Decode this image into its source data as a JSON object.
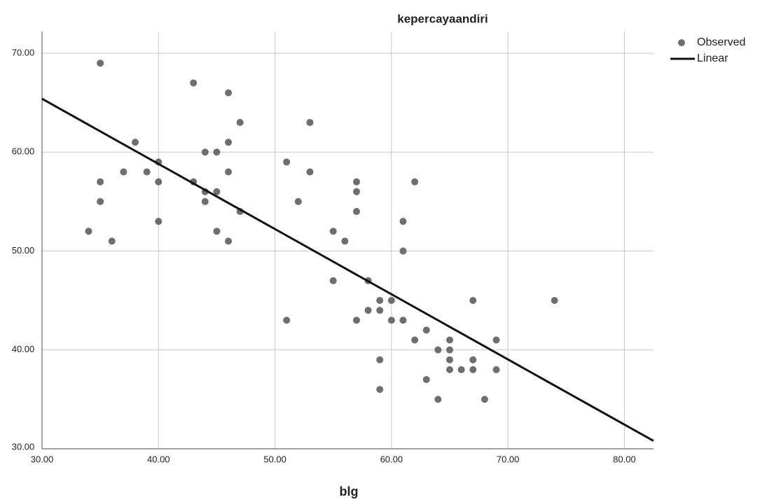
{
  "chart_data": {
    "type": "scatter",
    "title": "kepercayaandiri",
    "x_label": "blg",
    "xlim": [
      30,
      82.5
    ],
    "ylim": [
      30,
      72.2
    ],
    "xticks": [
      {
        "value": 30,
        "label": "30.00"
      },
      {
        "value": 40,
        "label": "40.00"
      },
      {
        "value": 50,
        "label": "50.00"
      },
      {
        "value": 60,
        "label": "60.00"
      },
      {
        "value": 70,
        "label": "70.00"
      },
      {
        "value": 80,
        "label": "80.00"
      }
    ],
    "yticks": [
      {
        "value": 30,
        "label": "30.00"
      },
      {
        "value": 40,
        "label": "40.00"
      },
      {
        "value": 50,
        "label": "50.00"
      },
      {
        "value": 60,
        "label": "60.00"
      },
      {
        "value": 70,
        "label": "70.00"
      }
    ],
    "grid": true,
    "legend": "right",
    "series": [
      {
        "name": "Observed",
        "type": "scatter",
        "color": "#6e6e6e",
        "x": [
          35,
          43,
          46,
          47,
          53,
          38,
          46,
          44,
          45,
          40,
          51,
          37,
          39,
          46,
          53,
          35,
          40,
          43,
          57,
          62,
          44,
          45,
          57,
          35,
          44,
          52,
          47,
          57,
          40,
          61,
          34,
          45,
          55,
          36,
          46,
          56,
          61,
          55,
          58,
          59,
          60,
          67,
          74,
          58,
          59,
          51,
          57,
          60,
          61,
          63,
          62,
          65,
          69,
          64,
          65,
          65,
          67,
          59,
          65,
          66,
          67,
          69,
          63,
          59,
          64,
          68
        ],
        "values": [
          69,
          67,
          66,
          63,
          63,
          61,
          61,
          60,
          60,
          59,
          59,
          58,
          58,
          58,
          58,
          57,
          57,
          57,
          57,
          57,
          56,
          56,
          56,
          55,
          55,
          55,
          54,
          54,
          53,
          53,
          52,
          52,
          52,
          51,
          51,
          51,
          50,
          47,
          47,
          45,
          45,
          45,
          45,
          44,
          44,
          43,
          43,
          43,
          43,
          42,
          41,
          41,
          41,
          40,
          40,
          39,
          39,
          39,
          38,
          38,
          38,
          38,
          37,
          36,
          35,
          35
        ]
      },
      {
        "name": "Linear",
        "type": "line",
        "color": "#111111",
        "x": [
          30,
          82.5
        ],
        "values": [
          65.4,
          30.8
        ]
      }
    ]
  }
}
